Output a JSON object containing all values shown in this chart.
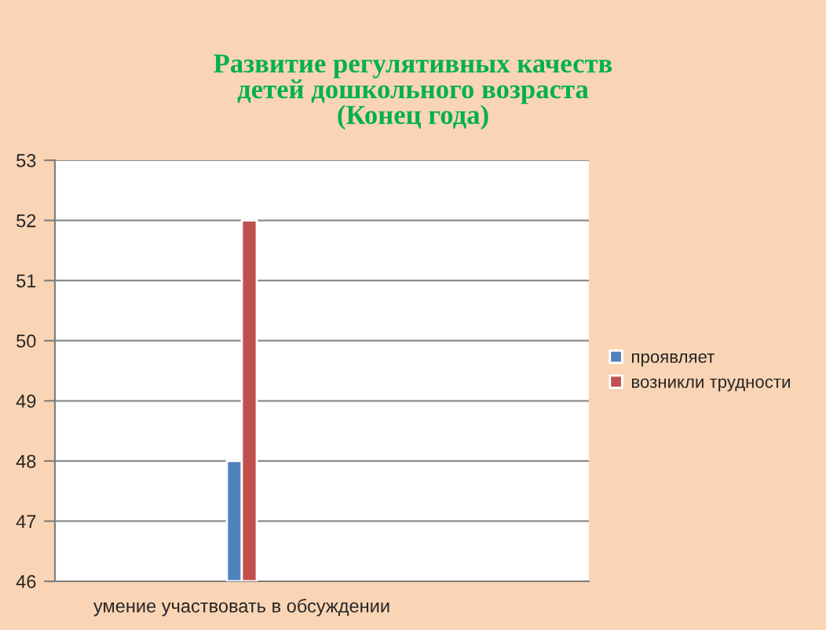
{
  "chart_data": {
    "type": "bar",
    "title": "Развитие регулятивных качеств\nдетей дошкольного возраста\n(Конец года)",
    "categories": [
      null,
      null,
      null,
      "умение участвовать в обсуждении",
      null,
      null,
      null,
      null,
      null,
      null
    ],
    "series": [
      {
        "name": "проявляет",
        "color": "#4f81bd",
        "values": [
          null,
          null,
          null,
          48,
          null,
          null,
          null,
          null,
          null,
          null
        ]
      },
      {
        "name": "возникли трудности",
        "color": "#c0504d",
        "values": [
          null,
          null,
          null,
          52,
          null,
          null,
          null,
          null,
          null,
          null
        ]
      }
    ],
    "ylim": [
      46,
      53
    ],
    "yticks": [
      46,
      47,
      48,
      49,
      50,
      51,
      52,
      53
    ],
    "grid": "y",
    "legend": "right"
  }
}
